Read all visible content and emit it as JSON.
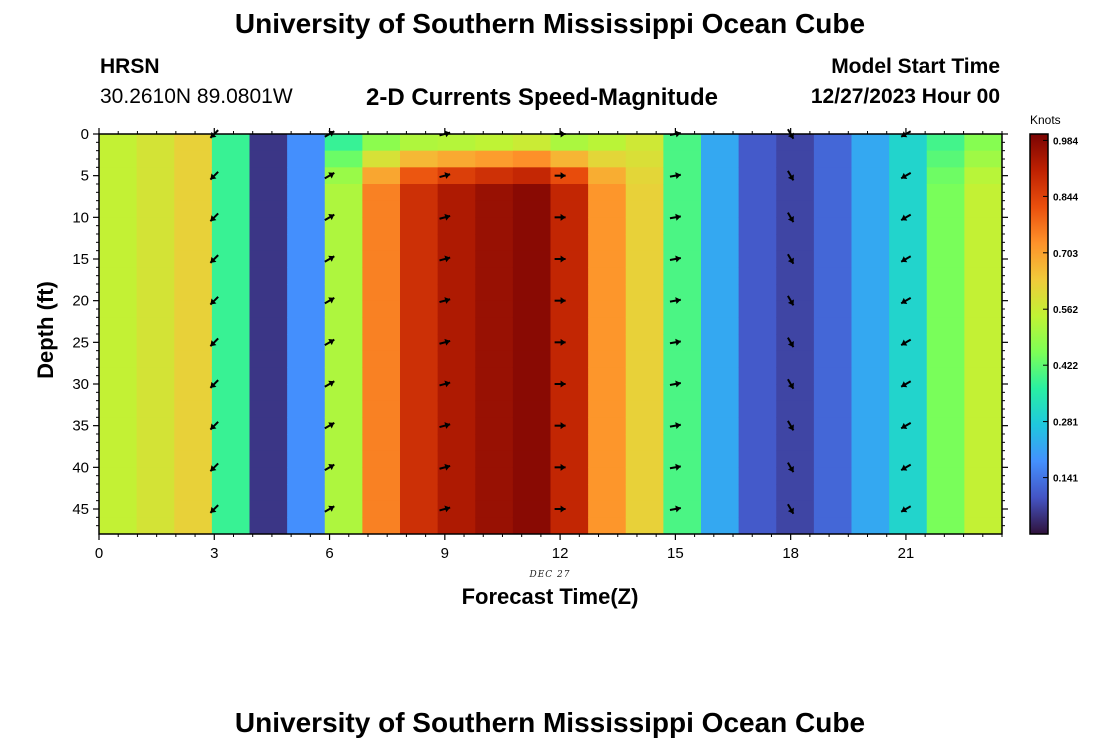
{
  "header": {
    "title": "University of Southern Mississippi Ocean Cube",
    "station": "HRSN",
    "coords": "30.2610N  89.0801W",
    "subtitle": "2-D Currents Speed-Magnitude",
    "start_label": "Model Start Time",
    "start_value": "12/27/2023 Hour 00",
    "date_label": "DEC 27",
    "footer_title": "University of Southern Mississippi Ocean Cube"
  },
  "chart_data": {
    "type": "heatmap",
    "xlabel": "Forecast Time(Z)",
    "ylabel": "Depth (ft)",
    "xlim": [
      0,
      23.5
    ],
    "ylim": [
      48,
      0
    ],
    "x_ticks": [
      0,
      3,
      6,
      9,
      12,
      15,
      18,
      21
    ],
    "y_ticks": [
      0,
      5,
      10,
      15,
      20,
      25,
      30,
      35,
      40,
      45
    ],
    "colorbar": {
      "unit": "Knots",
      "min": 0,
      "max": 1.0,
      "ticks": [
        0.141,
        0.281,
        0.422,
        0.562,
        0.703,
        0.844,
        0.984
      ],
      "colormap": [
        "#30123b",
        "#4454c4",
        "#4490fe",
        "#1fc8de",
        "#29efa2",
        "#7dff56",
        "#c1f334",
        "#f1ca3a",
        "#fe922a",
        "#ea4f0d",
        "#be2102",
        "#7a0403"
      ]
    },
    "time_hours": [
      0,
      1,
      2,
      3,
      4,
      5,
      6,
      7,
      8,
      9,
      10,
      11,
      12,
      13,
      14,
      15,
      16,
      17,
      18,
      19,
      20,
      21,
      22,
      23
    ],
    "column_speed_knots": [
      0.55,
      0.58,
      0.62,
      0.38,
      0.05,
      0.18,
      0.52,
      0.75,
      0.88,
      0.93,
      0.96,
      0.98,
      0.9,
      0.72,
      0.62,
      0.4,
      0.22,
      0.1,
      0.07,
      0.12,
      0.22,
      0.3,
      0.45,
      0.55
    ],
    "surface_speed_knots": [
      0.55,
      0.58,
      0.62,
      0.38,
      0.05,
      0.18,
      0.35,
      0.42,
      0.45,
      0.45,
      0.46,
      0.48,
      0.44,
      0.5,
      0.56,
      0.4,
      0.22,
      0.1,
      0.07,
      0.12,
      0.22,
      0.3,
      0.38,
      0.45
    ],
    "vector_times": [
      3,
      6,
      9,
      12,
      15,
      18,
      21
    ],
    "vector_depths": [
      0,
      5,
      10,
      15,
      20,
      25,
      30,
      35,
      40,
      45
    ],
    "vector_direction_deg": [
      225,
      60,
      75,
      90,
      80,
      150,
      240
    ],
    "colors": {
      "vector": "#000000",
      "frame": "#000000"
    }
  }
}
